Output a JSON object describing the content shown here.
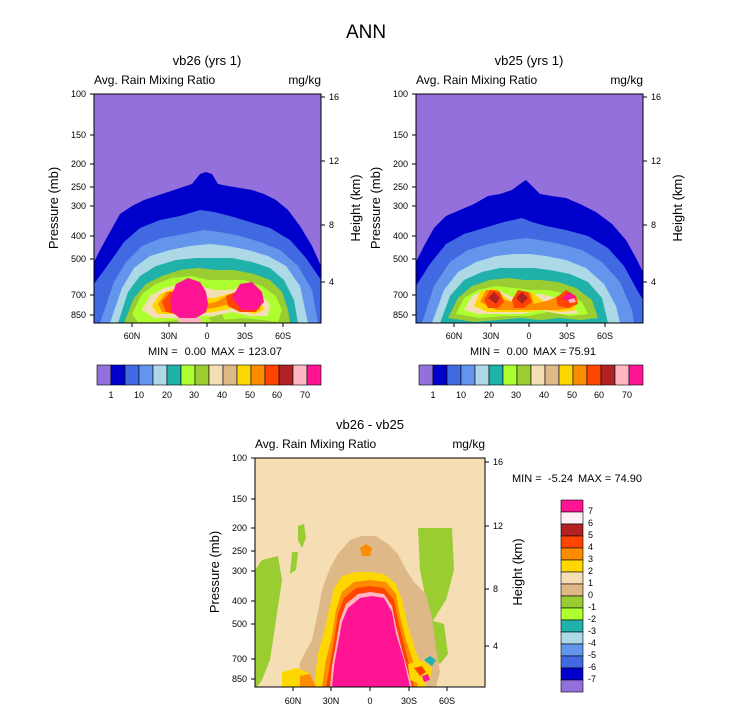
{
  "figure": {
    "title": "ANN"
  },
  "chart_data": [
    {
      "type": "heatmap",
      "title": "vb26 (yrs 1)",
      "subtitle_left": "Avg. Rain Mixing Ratio",
      "subtitle_right": "mg/kg",
      "ylabel": "Pressure (mb)",
      "ylabel_right": "Height (km)",
      "pressure_ticks": [
        "100",
        "150",
        "200",
        "250",
        "300",
        "400",
        "500",
        "700",
        "850"
      ],
      "height_ticks": [
        "16",
        "12",
        "8",
        "4"
      ],
      "lat_ticks": [
        "60N",
        "30N",
        "0",
        "30S",
        "60S"
      ],
      "stats": {
        "min_label": "MIN =",
        "min": "0.00",
        "max_label": "MAX =",
        "max": "123.07"
      },
      "colorbar_labels": [
        "1",
        "10",
        "20",
        "30",
        "40",
        "50",
        "60",
        "70"
      ],
      "colors": [
        "#9370db",
        "#0000cd",
        "#4169e1",
        "#6495ed",
        "#add8e6",
        "#20b2aa",
        "#adff2f",
        "#9acd32",
        "#f5deb3",
        "#deb887",
        "#ffd700",
        "#ff8c00",
        "#ff4500",
        "#b22222",
        "#ffb6c1",
        "#ff1493"
      ]
    },
    {
      "type": "heatmap",
      "title": "vb25 (yrs 1)",
      "subtitle_left": "Avg. Rain Mixing Ratio",
      "subtitle_right": "mg/kg",
      "ylabel": "Pressure (mb)",
      "ylabel_right": "Height (km)",
      "pressure_ticks": [
        "100",
        "150",
        "200",
        "250",
        "300",
        "400",
        "500",
        "700",
        "850"
      ],
      "height_ticks": [
        "16",
        "12",
        "8",
        "4"
      ],
      "lat_ticks": [
        "60N",
        "30N",
        "0",
        "30S",
        "60S"
      ],
      "stats": {
        "min_label": "MIN =",
        "min": "0.00",
        "max_label": "MAX =",
        "max": "75.91"
      },
      "colorbar_labels": [
        "1",
        "10",
        "20",
        "30",
        "40",
        "50",
        "60",
        "70"
      ]
    },
    {
      "type": "heatmap",
      "title": "vb26 - vb25",
      "subtitle_left": "Avg. Rain Mixing Ratio",
      "subtitle_right": "mg/kg",
      "ylabel": "Pressure (mb)",
      "ylabel_right": "Height (km)",
      "pressure_ticks": [
        "100",
        "150",
        "200",
        "250",
        "300",
        "400",
        "500",
        "700",
        "850"
      ],
      "height_ticks": [
        "16",
        "12",
        "8",
        "4"
      ],
      "lat_ticks": [
        "60N",
        "30N",
        "0",
        "30S",
        "60S"
      ],
      "stats": {
        "min_label": "MIN =",
        "min": "-5.24",
        "max_label": "MAX =",
        "max": "74.90"
      },
      "colorbar_labels": [
        "7",
        "6",
        "5",
        "4",
        "3",
        "2",
        "1",
        "0",
        "-1",
        "-2",
        "-3",
        "-4",
        "-5",
        "-6",
        "-7"
      ],
      "colors": [
        "#ff1493",
        "#fff0f5",
        "#b22222",
        "#ff4500",
        "#ff8c00",
        "#ffd700",
        "#f5deb3",
        "#deb887",
        "#9acd32",
        "#adff2f",
        "#20b2aa",
        "#add8e6",
        "#6495ed",
        "#4169e1",
        "#0000cd",
        "#9370db"
      ]
    }
  ]
}
